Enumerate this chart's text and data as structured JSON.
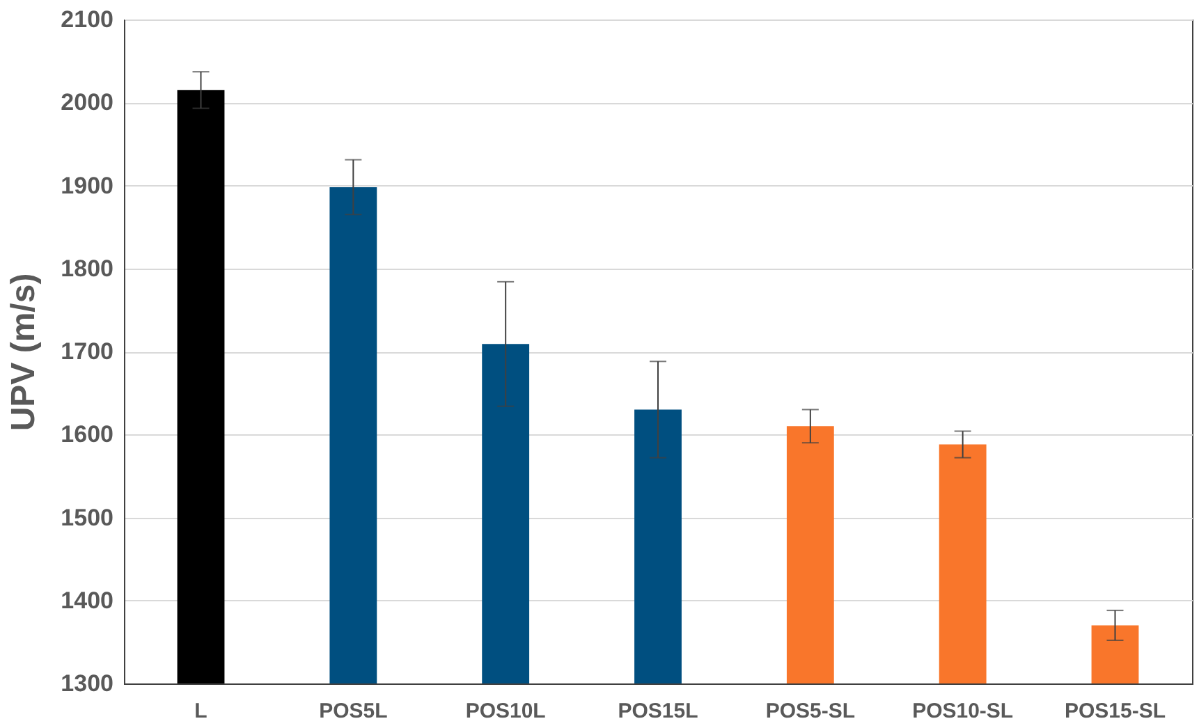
{
  "chart_data": {
    "type": "bar",
    "ylabel": "UPV (m/s)",
    "categories": [
      "L",
      "POS5L",
      "POS10L",
      "POS15L",
      "POS5-SL",
      "POS10-SL",
      "POS15-SL"
    ],
    "values": [
      2015,
      1898,
      1709,
      1630,
      1610,
      1588,
      1370
    ],
    "colors": [
      "#000000",
      "#004f80",
      "#004f80",
      "#004f80",
      "#f9762b",
      "#f9762b",
      "#f9762b"
    ],
    "errors": [
      22,
      33,
      75,
      58,
      20,
      16,
      18
    ],
    "ylim": [
      1300,
      2100
    ],
    "yticks": [
      1300,
      1400,
      1500,
      1600,
      1700,
      1800,
      1900,
      2000,
      2100
    ],
    "grid": "y"
  }
}
